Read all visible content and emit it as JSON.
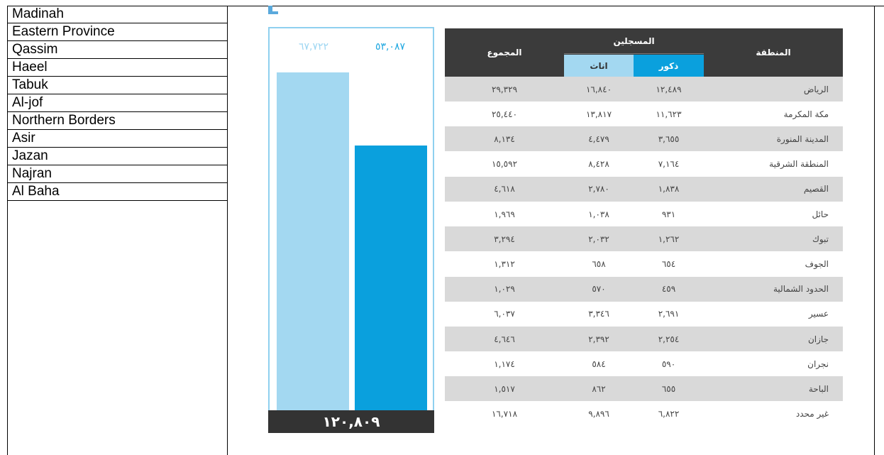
{
  "left_list": [
    "Madinah",
    "Eastern Province",
    "Qassim",
    "Haeel",
    "Tabuk",
    "Al-jof",
    "Northern Borders",
    "Asir",
    "Jazan",
    "Najran",
    "Al Baha"
  ],
  "figure": {
    "female": {
      "value": 67722,
      "label": "٦٧,٧٢٢"
    },
    "male": {
      "value": 53087,
      "label": "٥٣,٠٨٧"
    },
    "total": {
      "value": 120809,
      "label": "١٢٠,٨٠٩"
    }
  },
  "table": {
    "header": {
      "region": "المنطقة",
      "registered": "المسجلين",
      "male": "ذكور",
      "female": "اناث",
      "total": "المجموع"
    },
    "rows": [
      [
        "الرياض",
        "١٢,٤٨٩",
        "١٦,٨٤٠",
        "٢٩,٣٢٩"
      ],
      [
        "مكة المكرمة",
        "١١,٦٢٣",
        "١٣,٨١٧",
        "٢٥,٤٤٠"
      ],
      [
        "المدينة المنورة",
        "٣,٦٥٥",
        "٤,٤٧٩",
        "٨,١٣٤"
      ],
      [
        "المنطقة الشرقية",
        "٧,١٦٤",
        "٨,٤٢٨",
        "١٥,٥٩٢"
      ],
      [
        "القصيم",
        "١,٨٣٨",
        "٢,٧٨٠",
        "٤,٦١٨"
      ],
      [
        "حائل",
        "٩٣١",
        "١,٠٣٨",
        "١,٩٦٩"
      ],
      [
        "تبوك",
        "١,٢٦٢",
        "٢,٠٣٢",
        "٣,٢٩٤"
      ],
      [
        "الجوف",
        "٦٥٤",
        "٦٥٨",
        "١,٣١٢"
      ],
      [
        "الحدود الشمالية",
        "٤٥٩",
        "٥٧٠",
        "١,٠٢٩"
      ],
      [
        "عسير",
        "٢,٦٩١",
        "٣,٣٤٦",
        "٦,٠٣٧"
      ],
      [
        "جازان",
        "٢,٢٥٤",
        "٢,٣٩٢",
        "٤,٦٤٦"
      ],
      [
        "نجران",
        "٥٩٠",
        "٥٨٤",
        "١,١٧٤"
      ],
      [
        "الباحة",
        "٦٥٥",
        "٨٦٢",
        "١,٥١٧"
      ],
      [
        "غير محدد",
        "٦,٨٢٢",
        "٩,٨٩٦",
        "١٦,٧١٨"
      ]
    ]
  }
}
